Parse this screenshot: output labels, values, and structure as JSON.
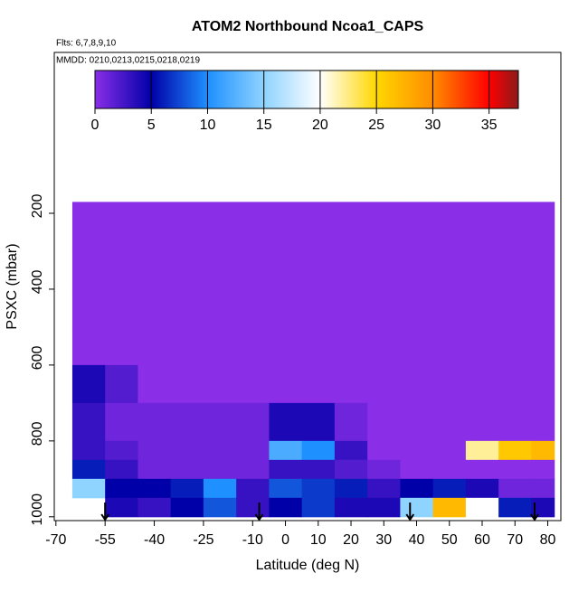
{
  "chart_data": {
    "type": "heatmap",
    "title": "ATOM2 Northbound Ncoa1_CAPS",
    "subtitle": "Flts: 6,7,8,9,10",
    "annotation": "MMDD: 0210,0213,0215,0218,0219",
    "xlabel": "Latitude (deg N)",
    "ylabel": "PSXC (mbar)",
    "xlim": [
      -70.5,
      84
    ],
    "xticks": [
      -70,
      -55,
      -40,
      -25,
      -10,
      0,
      10,
      20,
      30,
      40,
      50,
      60,
      70,
      80
    ],
    "ylim": [
      1010,
      -224
    ],
    "yticks": [
      200,
      400,
      600,
      800,
      1000
    ],
    "x_edges": [
      -65,
      -55,
      -45,
      -35,
      -25,
      -15,
      -5,
      5,
      15,
      25,
      35,
      45,
      55,
      65,
      75,
      82
    ],
    "y_edges": [
      170,
      300,
      400,
      500,
      600,
      700,
      800,
      850,
      900,
      950,
      1000
    ],
    "values": [
      [
        0,
        0,
        0,
        0,
        0,
        0,
        0,
        0,
        0,
        0,
        0,
        0,
        0,
        0,
        0
      ],
      [
        0,
        0,
        0,
        0,
        0,
        0,
        0,
        0,
        0,
        0,
        0,
        0,
        0,
        0,
        0
      ],
      [
        0,
        0,
        0,
        0,
        0,
        0,
        0,
        0,
        0,
        0,
        0,
        0,
        0,
        0,
        0
      ],
      [
        0,
        0,
        0,
        0,
        0,
        0,
        0,
        0,
        0,
        0,
        0,
        0,
        0,
        0,
        0
      ],
      [
        4,
        2,
        0,
        0,
        0,
        0,
        0,
        0,
        0,
        0,
        0,
        0,
        0,
        0,
        0
      ],
      [
        3,
        1,
        1,
        1,
        1,
        1,
        4,
        4,
        1,
        0,
        0,
        0,
        0,
        0,
        0
      ],
      [
        3,
        2,
        1,
        1,
        1,
        1,
        12,
        10,
        3,
        0,
        0,
        0,
        22,
        26,
        27
      ],
      [
        6,
        3,
        1,
        1,
        1,
        1,
        3,
        3,
        2,
        1,
        0,
        0,
        0,
        0,
        0
      ],
      [
        15,
        5,
        5,
        6,
        10,
        3,
        8,
        7,
        6,
        3,
        5,
        6,
        4,
        1,
        1
      ],
      [
        null,
        4,
        3,
        5,
        8,
        3,
        5,
        7,
        4,
        4,
        15,
        27,
        20,
        6,
        4
      ]
    ],
    "colorbar_lim": [
      0,
      37.6
    ],
    "colorbar_ticks": [
      0,
      5,
      10,
      15,
      20,
      25,
      30,
      35
    ],
    "colorscale": [
      [
        0,
        "#8a2ee8"
      ],
      [
        5,
        "#0000a8"
      ],
      [
        10,
        "#1e90ff"
      ],
      [
        15,
        "#8fd3ff"
      ],
      [
        20,
        "#ffffff"
      ],
      [
        25,
        "#ffd700"
      ],
      [
        30,
        "#ff8c00"
      ],
      [
        35,
        "#ff0000"
      ],
      [
        37.6,
        "#8b1a1a"
      ]
    ],
    "arrows": [
      -55,
      -8,
      38,
      76
    ]
  }
}
